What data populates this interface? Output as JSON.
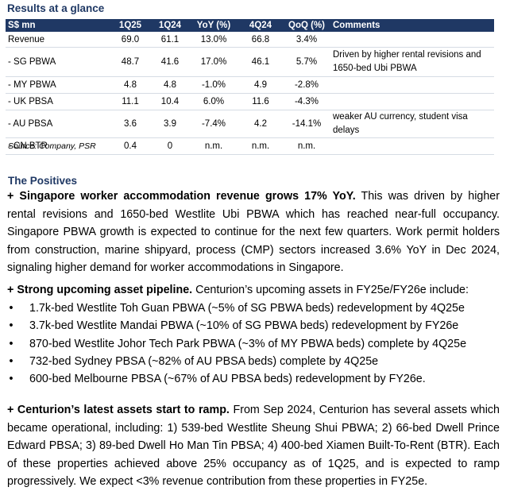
{
  "results": {
    "title": "Results at a glance",
    "headers": [
      "S$ mn",
      "1Q25",
      "1Q24",
      "YoY (%)",
      "4Q24",
      "QoQ (%)",
      "Comments"
    ],
    "rows": [
      {
        "label": "Revenue",
        "q125": "69.0",
        "q124": "61.1",
        "yoy": "13.0%",
        "q424": "66.8",
        "qoq": "3.4%",
        "comment": ""
      },
      {
        "label": "- SG PBWA",
        "q125": "48.7",
        "q124": "41.6",
        "yoy": "17.0%",
        "q424": "46.1",
        "qoq": "5.7%",
        "comment": "Driven by higher rental revisions and 1650-bed Ubi PBWA"
      },
      {
        "label": "- MY PBWA",
        "q125": "4.8",
        "q124": "4.8",
        "yoy": "-1.0%",
        "q424": "4.9",
        "qoq": "-2.8%",
        "comment": ""
      },
      {
        "label": "- UK PBSA",
        "q125": "11.1",
        "q124": "10.4",
        "yoy": "6.0%",
        "q424": "11.6",
        "qoq": "-4.3%",
        "comment": ""
      },
      {
        "label": "- AU PBSA",
        "q125": "3.6",
        "q124": "3.9",
        "yoy": "-7.4%",
        "q424": "4.2",
        "qoq": "-14.1%",
        "comment": "weaker AU currency, student visa delays"
      },
      {
        "label": "- CN BTR",
        "q125": "0.4",
        "q124": "0",
        "yoy": "n.m.",
        "q424": "n.m.",
        "qoq": "n.m.",
        "comment": ""
      }
    ],
    "source": "Source: Company, PSR"
  },
  "positives": {
    "title": "The Positives",
    "p1_bold": "+ Singapore worker accommodation revenue grows 17% YoY.",
    "p1_text": " This was driven by higher rental revisions and 1650-bed Westlite Ubi PBWA which has reached near-full occupancy. Singapore PBWA growth is expected to continue for the next few quarters. Work permit holders from construction, marine shipyard, process (CMP) sectors increased 3.6% YoY in Dec 2024, signaling higher demand for worker accommodations in Singapore.",
    "p2_bold": "+ Strong upcoming asset pipeline.",
    "p2_text": " Centurion’s upcoming assets in FY25e/FY26e include:",
    "bullet_char": "•",
    "pipeline": [
      "1.7k-bed Westlite Toh Guan PBWA (~5% of SG PBWA beds) redevelopment by 4Q25e",
      "3.7k-bed Westlite Mandai PBWA (~10% of SG PBWA beds) redevelopment by FY26e",
      "870-bed Westlite Johor Tech Park PBWA (~3% of MY PBWA beds) complete by 4Q25e",
      "732-bed Sydney PBSA (~82% of AU PBSA beds) complete by 4Q25e",
      "600-bed Melbourne PBSA (~67% of AU PBSA beds) redevelopment by FY26e."
    ],
    "p3_bold": "+ Centurion’s latest assets start to ramp.",
    "p3_text": " From Sep 2024, Centurion has several assets which became operational, including: 1) 539-bed Westlite Sheung Shui PBWA; 2) 66-bed Dwell Prince Edward PBSA; 3) 89-bed Dwell Ho Man Tin PBSA; 4) 400-bed Xiamen Built-To-Rent (BTR). Each of these properties achieved above 25% occupancy as of 1Q25, and is expected to ramp progressively. We expect <3% revenue contribution from these properties in FY25e."
  }
}
